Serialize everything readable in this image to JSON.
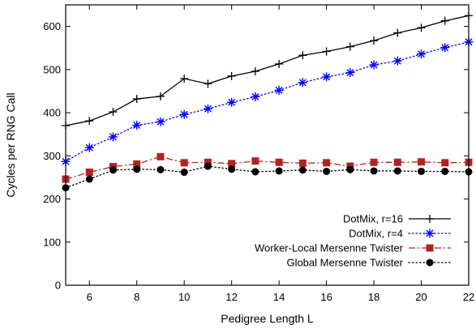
{
  "chart_data": {
    "type": "line",
    "title": "",
    "xlabel": "Pedigree Length L",
    "ylabel": "Cycles per RNG Call",
    "xlim": [
      5,
      22
    ],
    "ylim": [
      0,
      650
    ],
    "x_ticks": [
      6,
      8,
      10,
      12,
      14,
      16,
      18,
      20,
      22
    ],
    "y_ticks": [
      0,
      100,
      200,
      300,
      400,
      500,
      600
    ],
    "grid": false,
    "legend_position": "bottom-right",
    "x": [
      5,
      6,
      7,
      8,
      9,
      10,
      11,
      12,
      13,
      14,
      15,
      16,
      17,
      18,
      19,
      20,
      21,
      22
    ],
    "series": [
      {
        "name": "DotMix, r=16",
        "color": "#000000",
        "marker": "plus",
        "dash": "solid",
        "values": [
          370,
          381,
          402,
          432,
          438,
          479,
          467,
          485,
          496,
          513,
          533,
          542,
          553,
          567,
          585,
          597,
          613,
          625
        ]
      },
      {
        "name": "DotMix, r=4",
        "color": "#0000ff",
        "marker": "asterisk",
        "dash": "dotted",
        "values": [
          287,
          319,
          344,
          371,
          379,
          396,
          409,
          424,
          437,
          452,
          470,
          483,
          493,
          511,
          520,
          536,
          551,
          564
        ]
      },
      {
        "name": "Worker-Local Mersenne Twister",
        "color": "#b22222",
        "marker": "square",
        "dash": "dashdot",
        "values": [
          246,
          262,
          275,
          281,
          298,
          284,
          285,
          282,
          288,
          285,
          283,
          284,
          276,
          285,
          285,
          286,
          284,
          285
        ]
      },
      {
        "name": "Global Mersenne Twister",
        "color": "#000000",
        "marker": "circle",
        "dash": "dotted",
        "values": [
          226,
          246,
          267,
          269,
          268,
          262,
          276,
          269,
          263,
          265,
          267,
          264,
          268,
          265,
          265,
          264,
          264,
          263
        ]
      }
    ]
  }
}
